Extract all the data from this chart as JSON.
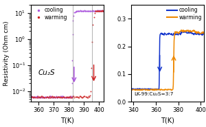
{
  "panel1": {
    "title": "Cu₂S",
    "xlabel": "T(K)",
    "ylabel": "Resistivity (Ohm cm)",
    "xlim": [
      355,
      403
    ],
    "xticks": [
      360,
      370,
      380,
      390,
      400
    ],
    "ymin": 0.004,
    "ymax": 20.0,
    "cooling_color": "#aa55dd",
    "warming_color": "#cc2222",
    "cool_jump_x": 382.5,
    "warm_jump_x": 395.5,
    "low_y": 0.006,
    "high_y": 12.0
  },
  "panel2": {
    "title": "LK-99:Cu₂S=3:7",
    "xlabel": "T(K)",
    "xlim": [
      338,
      403
    ],
    "xticks": [
      340,
      360,
      380,
      400
    ],
    "ylim": [
      0.0,
      0.35
    ],
    "yticks": [
      0.0,
      0.1,
      0.2,
      0.3
    ],
    "cooling_color": "#1133cc",
    "warming_color": "#ee8800",
    "cooling_low_y": 0.045,
    "cooling_high_y": 0.245,
    "cooling_jump_x": 363.5,
    "warming_low_y": 0.043,
    "warming_high_y": 0.25,
    "warming_jump_x": 376.0
  },
  "legend_cooling_label": "cooling",
  "legend_warming_label": "warming"
}
